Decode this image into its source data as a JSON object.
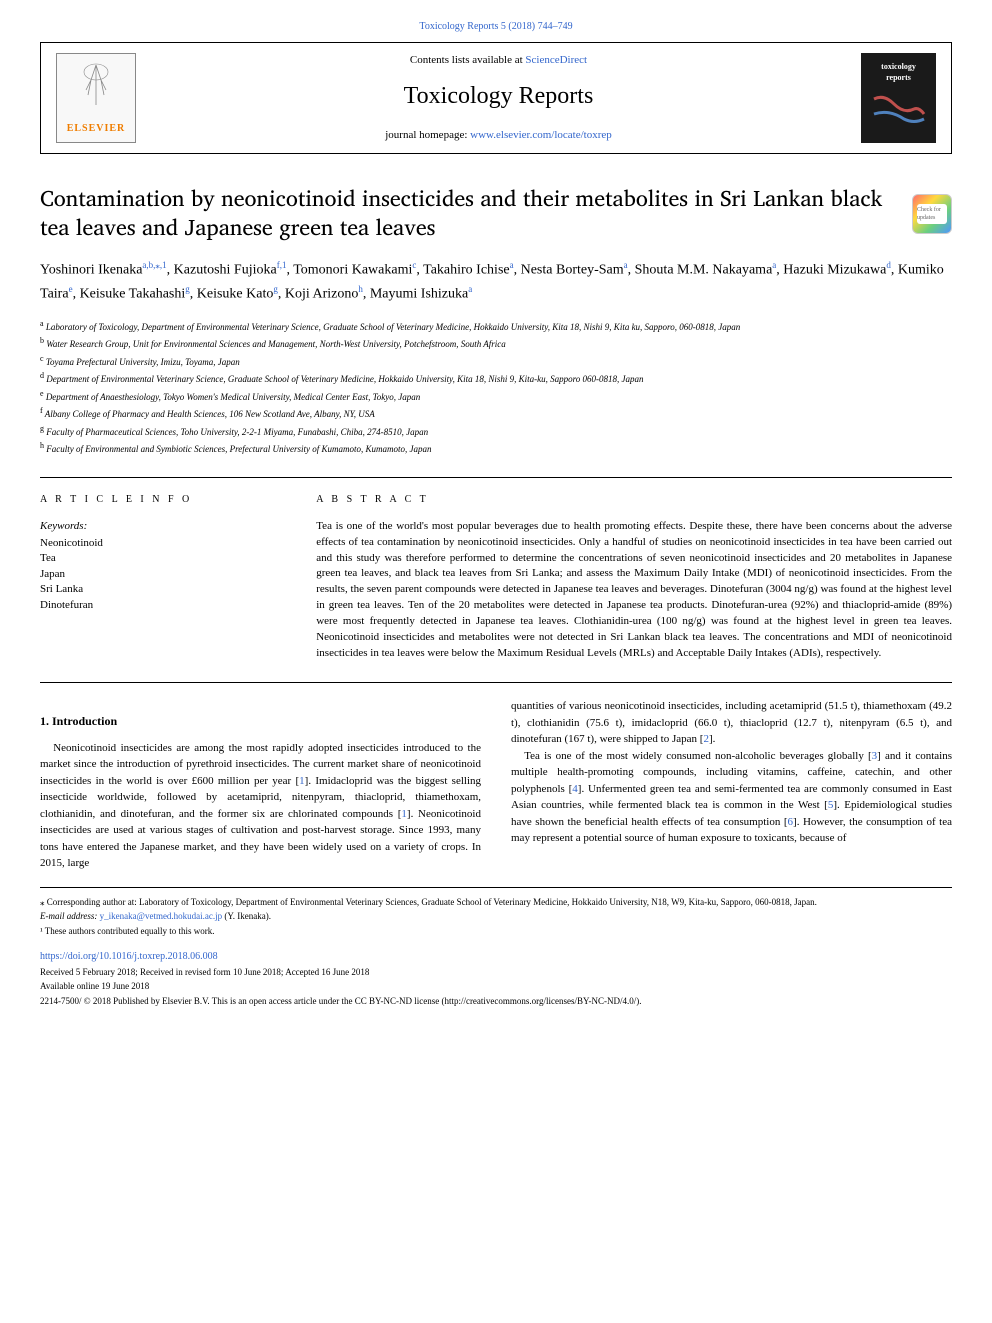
{
  "topHeader": {
    "journal": "Toxicology Reports",
    "volume": "5 (2018) 744–749"
  },
  "journalBox": {
    "contentsLists": "Contents lists available at ",
    "scienceDirect": "ScienceDirect",
    "title": "Toxicology Reports",
    "homepageLabel": "journal homepage: ",
    "homepageUrl": "www.elsevier.com/locate/toxrep",
    "elsevierLabel": "ELSEVIER",
    "coverText1": "toxicology",
    "coverText2": "reports"
  },
  "crossmark": {
    "label": "Check for updates"
  },
  "article": {
    "title": "Contamination by neonicotinoid insecticides and their metabolites in Sri Lankan black tea leaves and Japanese green tea leaves"
  },
  "authors": [
    {
      "name": "Yoshinori Ikenaka",
      "sup": "a,b,⁎,1"
    },
    {
      "name": "Kazutoshi Fujioka",
      "sup": "f,1"
    },
    {
      "name": "Tomonori Kawakami",
      "sup": "c"
    },
    {
      "name": "Takahiro Ichise",
      "sup": "a"
    },
    {
      "name": "Nesta Bortey-Sam",
      "sup": "a"
    },
    {
      "name": "Shouta M.M. Nakayama",
      "sup": "a"
    },
    {
      "name": "Hazuki Mizukawa",
      "sup": "d"
    },
    {
      "name": "Kumiko Taira",
      "sup": "e"
    },
    {
      "name": "Keisuke Takahashi",
      "sup": "g"
    },
    {
      "name": "Keisuke Kato",
      "sup": "g"
    },
    {
      "name": "Koji Arizono",
      "sup": "h"
    },
    {
      "name": "Mayumi Ishizuka",
      "sup": "a"
    }
  ],
  "affiliations": [
    {
      "sup": "a",
      "text": "Laboratory of Toxicology, Department of Environmental Veterinary Science, Graduate School of Veterinary Medicine, Hokkaido University, Kita 18, Nishi 9, Kita ku, Sapporo, 060-0818, Japan"
    },
    {
      "sup": "b",
      "text": "Water Research Group, Unit for Environmental Sciences and Management, North-West University, Potchefstroom, South Africa"
    },
    {
      "sup": "c",
      "text": "Toyama Prefectural University, Imizu, Toyama, Japan"
    },
    {
      "sup": "d",
      "text": "Department of Environmental Veterinary Science, Graduate School of Veterinary Medicine, Hokkaido University, Kita 18, Nishi 9, Kita-ku, Sapporo 060-0818, Japan"
    },
    {
      "sup": "e",
      "text": "Department of Anaesthesiology, Tokyo Women's Medical University, Medical Center East, Tokyo, Japan"
    },
    {
      "sup": "f",
      "text": "Albany College of Pharmacy and Health Sciences, 106 New Scotland Ave, Albany, NY, USA"
    },
    {
      "sup": "g",
      "text": "Faculty of Pharmaceutical Sciences, Toho University, 2-2-1 Miyama, Funabashi, Chiba, 274-8510, Japan"
    },
    {
      "sup": "h",
      "text": "Faculty of Environmental and Symbiotic Sciences, Prefectural University of Kumamoto, Kumamoto, Japan"
    }
  ],
  "articleInfo": {
    "heading": "A R T I C L E  I N F O",
    "keywordsLabel": "Keywords:",
    "keywords": [
      "Neonicotinoid",
      "Tea",
      "Japan",
      "Sri Lanka",
      "Dinotefuran"
    ]
  },
  "abstract": {
    "heading": "A B S T R A C T",
    "text": "Tea is one of the world's most popular beverages due to health promoting effects. Despite these, there have been concerns about the adverse effects of tea contamination by neonicotinoid insecticides. Only a handful of studies on neonicotinoid insecticides in tea have been carried out and this study was therefore performed to determine the concentrations of seven neonicotinoid insecticides and 20 metabolites in Japanese green tea leaves, and black tea leaves from Sri Lanka; and assess the Maximum Daily Intake (MDI) of neonicotinoid insecticides. From the results, the seven parent compounds were detected in Japanese tea leaves and beverages. Dinotefuran (3004 ng/g) was found at the highest level in green tea leaves. Ten of the 20 metabolites were detected in Japanese tea products. Dinotefuran-urea (92%) and thiacloprid-amide (89%) were most frequently detected in Japanese tea leaves. Clothianidin-urea (100 ng/g) was found at the highest level in green tea leaves. Neonicotinoid insecticides and metabolites were not detected in Sri Lankan black tea leaves. The concentrations and MDI of neonicotinoid insecticides in tea leaves were below the Maximum Residual Levels (MRLs) and Acceptable Daily Intakes (ADIs), respectively."
  },
  "body": {
    "introHeading": "1. Introduction",
    "introPara1": "Neonicotinoid insecticides are among the most rapidly adopted insecticides introduced to the market since the introduction of pyrethroid insecticides. The current market share of neonicotinoid insecticides in the world is over £600 million per year [1]. Imidacloprid was the biggest selling insecticide worldwide, followed by acetamiprid, nitenpyram, thiacloprid, thiamethoxam, clothianidin, and dinotefuran, and the former six are chlorinated compounds [1]. Neonicotinoid insecticides are used at various stages of cultivation and post-harvest storage. Since 1993, many tons have entered the Japanese market, and they have been widely used on a variety of crops. In 2015, large",
    "introPara2": "quantities of various neonicotinoid insecticides, including acetamiprid (51.5 t), thiamethoxam (49.2 t), clothianidin (75.6 t), imidacloprid (66.0 t), thiacloprid (12.7 t), nitenpyram (6.5 t), and dinotefuran (167 t), were shipped to Japan [2].",
    "introPara3": "Tea is one of the most widely consumed non-alcoholic beverages globally [3] and it contains multiple health-promoting compounds, including vitamins, caffeine, catechin, and other polyphenols [4]. Unfermented green tea and semi-fermented tea are commonly consumed in East Asian countries, while fermented black tea is common in the West [5]. Epidemiological studies have shown the beneficial health effects of tea consumption [6]. However, the consumption of tea may represent a potential source of human exposure to toxicants, because of"
  },
  "footnotes": {
    "corresponding": "⁎ Corresponding author at: Laboratory of Toxicology, Department of Environmental Veterinary Sciences, Graduate School of Veterinary Medicine, Hokkaido University, N18, W9, Kita-ku, Sapporo, 060-0818, Japan.",
    "emailLabel": "E-mail address: ",
    "email": "y_ikenaka@vetmed.hokudai.ac.jp",
    "emailSuffix": " (Y. Ikenaka).",
    "equalContrib": "¹ These authors contributed equally to this work."
  },
  "doi": {
    "url": "https://doi.org/10.1016/j.toxrep.2018.06.008",
    "dates": "Received 5 February 2018; Received in revised form 10 June 2018; Accepted 16 June 2018",
    "available": "Available online 19 June 2018",
    "copyright": "2214-7500/ © 2018 Published by Elsevier B.V. This is an open access article under the CC BY-NC-ND license (http://creativecommons.org/licenses/BY-NC-ND/4.0/)."
  }
}
